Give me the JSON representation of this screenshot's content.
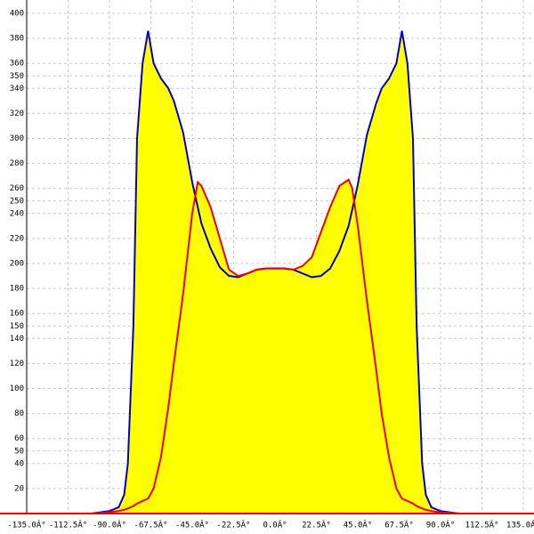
{
  "chart_data": {
    "type": "area",
    "x": [
      -135,
      -100,
      -90,
      -85,
      -82,
      -80,
      -77,
      -75,
      -72,
      -69,
      -66,
      -62,
      -58,
      -55,
      -50,
      -45,
      -42,
      -40,
      -35,
      -30,
      -25,
      -20,
      -15,
      -10,
      -5,
      0,
      5,
      10,
      15,
      20,
      25,
      30,
      35,
      40,
      42,
      45,
      50,
      55,
      58,
      62,
      66,
      69,
      72,
      75,
      77,
      80,
      82,
      85,
      90,
      100,
      135
    ],
    "series": [
      {
        "color": "#0000cc",
        "values": [
          0,
          0,
          2,
          5,
          15,
          40,
          150,
          300,
          360,
          386,
          360,
          348,
          340,
          330,
          305,
          265,
          245,
          232,
          212,
          197,
          190,
          189,
          192,
          195,
          196,
          196,
          196,
          195,
          192,
          189,
          190,
          196,
          210,
          230,
          243,
          263,
          303,
          328,
          340,
          348,
          360,
          386,
          360,
          300,
          150,
          40,
          15,
          5,
          2,
          0,
          0
        ]
      },
      {
        "color": "#ee0000",
        "values": [
          0,
          0,
          1,
          2,
          3,
          4,
          6,
          8,
          10,
          12,
          20,
          45,
          85,
          120,
          175,
          240,
          265,
          262,
          245,
          220,
          195,
          190,
          192,
          195,
          196,
          196,
          196,
          195,
          198,
          205,
          225,
          245,
          262,
          267,
          260,
          230,
          170,
          115,
          80,
          45,
          20,
          12,
          10,
          8,
          6,
          4,
          3,
          2,
          1,
          0,
          0
        ]
      }
    ],
    "fill_color": "#ffff00",
    "xlim": [
      -135,
      135
    ],
    "xticks": [
      {
        "value": -135,
        "label": "-135.0Â°"
      },
      {
        "value": -112.5,
        "label": "-112.5Â°"
      },
      {
        "value": -90,
        "label": "-90.0Â°"
      },
      {
        "value": -67.5,
        "label": "-67.5Â°"
      },
      {
        "value": -45,
        "label": "-45.0Â°"
      },
      {
        "value": -22.5,
        "label": "-22.5Â°"
      },
      {
        "value": 0,
        "label": "0.0Â°"
      },
      {
        "value": 22.5,
        "label": "22.5Â°"
      },
      {
        "value": 45,
        "label": "45.0Â°"
      },
      {
        "value": 67.5,
        "label": "67.5Â°"
      },
      {
        "value": 90,
        "label": "90.0Â°"
      },
      {
        "value": 112.5,
        "label": "112.5Â°"
      },
      {
        "value": 135,
        "label": "135.0Â°"
      }
    ],
    "ylim": [
      0,
      400
    ],
    "yticks": [
      20,
      40,
      50,
      60,
      80,
      100,
      120,
      140,
      150,
      160,
      180,
      200,
      220,
      240,
      250,
      260,
      280,
      300,
      320,
      340,
      350,
      360,
      380,
      400
    ],
    "grid": true
  }
}
